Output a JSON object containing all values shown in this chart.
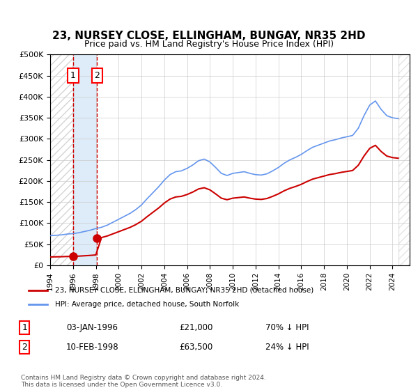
{
  "title": "23, NURSEY CLOSE, ELLINGHAM, BUNGAY, NR35 2HD",
  "subtitle": "Price paid vs. HM Land Registry's House Price Index (HPI)",
  "legend_line1": "23, NURSEY CLOSE, ELLINGHAM, BUNGAY, NR35 2HD (detached house)",
  "legend_line2": "HPI: Average price, detached house, South Norfolk",
  "transaction1_date": "03-JAN-1996",
  "transaction1_price": 21000,
  "transaction1_label": "70% ↓ HPI",
  "transaction2_date": "10-FEB-1998",
  "transaction2_price": 63500,
  "transaction2_label": "24% ↓ HPI",
  "transaction1_year": 1996.01,
  "transaction2_year": 1998.12,
  "footnote": "Contains HM Land Registry data © Crown copyright and database right 2024.\nThis data is licensed under the Open Government Licence v3.0.",
  "hpi_color": "#6495ED",
  "price_color": "#CC0000",
  "shade_color": "#D0E4F7",
  "hatch_color": "#C0C0C0",
  "ylim_max": 500000,
  "xmin": 1994.0,
  "xmax": 2025.5
}
